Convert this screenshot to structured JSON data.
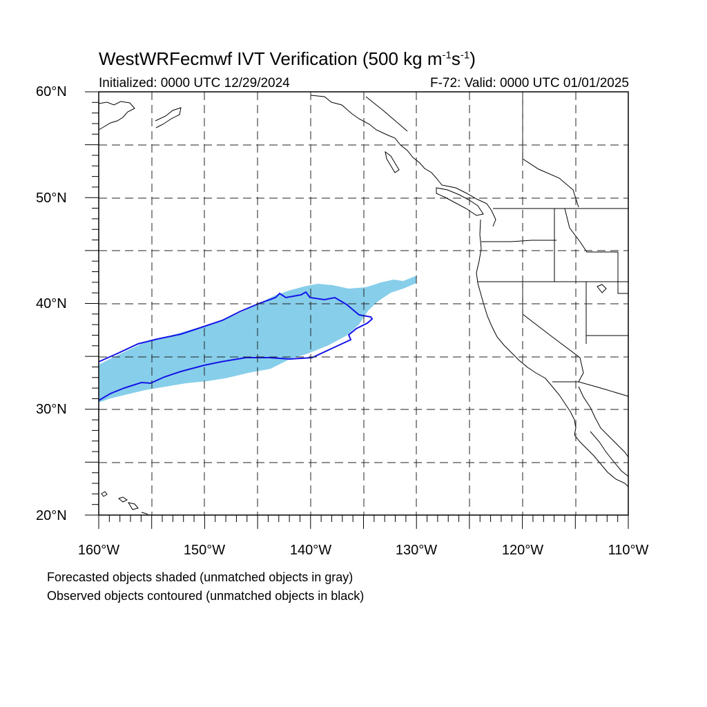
{
  "header": {
    "title_main": "WestWRFecmwf IVT Verification (500 kg m",
    "title_sup1": "-1",
    "title_mid": "s",
    "title_sup2": "-1",
    "title_end": ")",
    "initialized": "Initialized: 0000 UTC 12/29/2024",
    "valid": "F-72: Valid: 0000 UTC 01/01/2025"
  },
  "axes": {
    "lat_labels": [
      "60°N",
      "50°N",
      "40°N",
      "30°N",
      "20°N"
    ],
    "lon_labels": [
      "160°W",
      "150°W",
      "140°W",
      "130°W",
      "120°W",
      "110°W"
    ],
    "lat_range": [
      20,
      60
    ],
    "lon_range": [
      -160,
      -110
    ],
    "grid_interval_deg": 5
  },
  "legend": {
    "line1": "Forecasted objects shaded (unmatched objects in gray)",
    "line2": "Observed objects contoured (unmatched objects in black)"
  },
  "colors": {
    "forecast_fill": "#87ceeb",
    "observed_contour": "#1414e6",
    "coastline": "#000000",
    "grid": "#222222"
  }
}
